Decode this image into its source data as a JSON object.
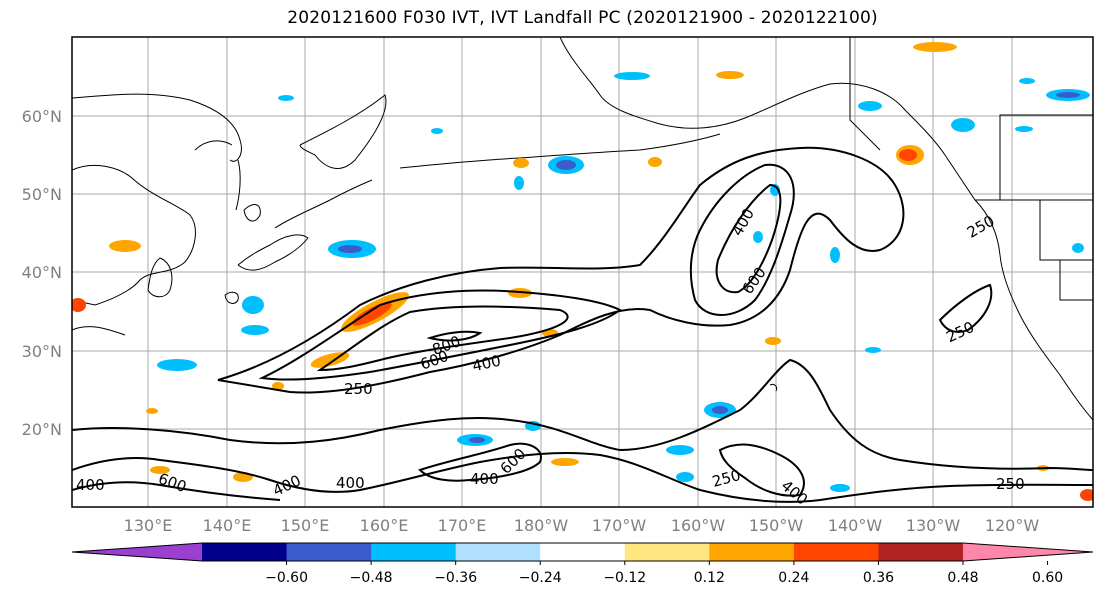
{
  "title": "2020121600 F030 IVT, IVT Landfall PC (2020121900 - 2020122100)",
  "lat_labels": [
    "60°N",
    "50°N",
    "40°N",
    "30°N",
    "20°N"
  ],
  "lon_labels": [
    "130°E",
    "140°E",
    "150°E",
    "160°E",
    "170°E",
    "180°W",
    "170°W",
    "160°W",
    "150°W",
    "140°W",
    "130°W",
    "120°W"
  ],
  "contour_labels": [
    "400",
    "600",
    "800",
    "600",
    "400",
    "250",
    "400",
    "600",
    "250",
    "250",
    "250",
    "600",
    "400",
    "400",
    "400",
    "400",
    "250",
    "400",
    "250"
  ],
  "colorbar": {
    "ticks": [
      "−0.60",
      "−0.48",
      "−0.36",
      "−0.24",
      "−0.12",
      "0.12",
      "0.24",
      "0.36",
      "0.48",
      "0.60"
    ],
    "colors": [
      "#9a3fd0",
      "#00008b",
      "#3a5ccc",
      "#00bfff",
      "#b0e0ff",
      "#ffffff",
      "#ffe680",
      "#ffa500",
      "#ff4500",
      "#b22222",
      "#ff88aa"
    ]
  }
}
